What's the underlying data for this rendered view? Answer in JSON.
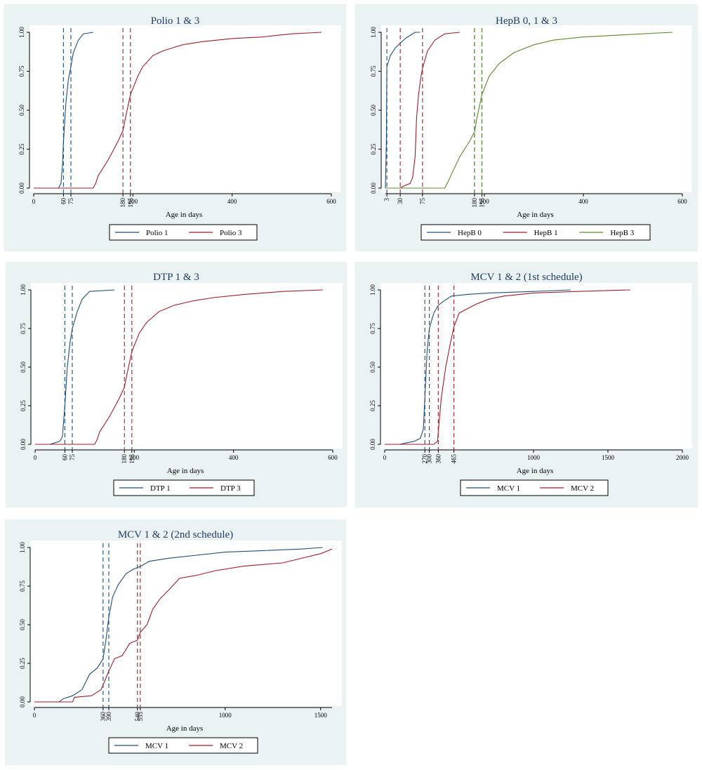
{
  "chart_data": [
    {
      "type": "line",
      "title": "Polio 1 & 3",
      "xlabel": "Age in days",
      "ylabel": "",
      "xlim": [
        0,
        600
      ],
      "ylim": [
        0,
        1
      ],
      "xticks": [
        "0",
        "200",
        "400",
        "600"
      ],
      "yticks": [
        "0.00",
        "0.25",
        "0.50",
        "0.75",
        "1.00"
      ],
      "vlines": [
        {
          "x": 60,
          "label": "60",
          "color": "#2c5d8f"
        },
        {
          "x": 75,
          "label": "75",
          "color": "#2c5d8f"
        },
        {
          "x": 180,
          "label": "180",
          "color": "#a5323a"
        },
        {
          "x": 195,
          "label": "195",
          "color": "#a5323a"
        }
      ],
      "legend": "bottom",
      "series": [
        {
          "name": "Polio 1",
          "color": "#1f4e79",
          "points": [
            [
              0,
              0
            ],
            [
              50,
              0
            ],
            [
              55,
              0.03
            ],
            [
              58,
              0.15
            ],
            [
              60,
              0.3
            ],
            [
              65,
              0.55
            ],
            [
              70,
              0.7
            ],
            [
              75,
              0.78
            ],
            [
              80,
              0.87
            ],
            [
              90,
              0.95
            ],
            [
              100,
              0.99
            ],
            [
              120,
              1.0
            ]
          ]
        },
        {
          "name": "Polio 3",
          "color": "#a01e2a",
          "points": [
            [
              0,
              0
            ],
            [
              120,
              0
            ],
            [
              125,
              0.03
            ],
            [
              130,
              0.08
            ],
            [
              150,
              0.18
            ],
            [
              170,
              0.3
            ],
            [
              180,
              0.37
            ],
            [
              185,
              0.45
            ],
            [
              195,
              0.6
            ],
            [
              210,
              0.72
            ],
            [
              220,
              0.78
            ],
            [
              240,
              0.85
            ],
            [
              260,
              0.88
            ],
            [
              300,
              0.92
            ],
            [
              340,
              0.94
            ],
            [
              400,
              0.96
            ],
            [
              460,
              0.97
            ],
            [
              520,
              0.99
            ],
            [
              580,
              1.0
            ]
          ]
        }
      ]
    },
    {
      "type": "line",
      "title": "HepB 0, 1 & 3",
      "xlabel": "Age in days",
      "ylabel": "",
      "xlim": [
        0,
        600
      ],
      "ylim": [
        0,
        1
      ],
      "xticks": [
        "200",
        "400",
        "600"
      ],
      "yticks": [
        "0.00",
        "0.25",
        "0.50",
        "0.75",
        "1.00"
      ],
      "vlines": [
        {
          "x": 3,
          "label": "3",
          "color": "#2c5d8f"
        },
        {
          "x": 30,
          "label": "30",
          "color": "#a5323a"
        },
        {
          "x": 75,
          "label": "75",
          "color": "#a5323a"
        },
        {
          "x": 180,
          "label": "180",
          "color": "#4a7a2a"
        },
        {
          "x": 195,
          "label": "195",
          "color": "#4a7a2a"
        }
      ],
      "legend": "bottom",
      "series": [
        {
          "name": "HepB 0",
          "color": "#1f4e79",
          "points": [
            [
              0,
              0
            ],
            [
              2,
              0.3
            ],
            [
              3,
              0.78
            ],
            [
              10,
              0.85
            ],
            [
              20,
              0.9
            ],
            [
              30,
              0.93
            ],
            [
              40,
              0.96
            ],
            [
              50,
              0.98
            ],
            [
              60,
              1.0
            ],
            [
              70,
              1.0
            ]
          ]
        },
        {
          "name": "HepB 1",
          "color": "#a01e2a",
          "points": [
            [
              0,
              0
            ],
            [
              30,
              0
            ],
            [
              35,
              0.01
            ],
            [
              50,
              0.03
            ],
            [
              55,
              0.07
            ],
            [
              60,
              0.2
            ],
            [
              63,
              0.45
            ],
            [
              67,
              0.6
            ],
            [
              72,
              0.72
            ],
            [
              75,
              0.77
            ],
            [
              85,
              0.88
            ],
            [
              100,
              0.95
            ],
            [
              120,
              0.99
            ],
            [
              150,
              1.0
            ]
          ]
        },
        {
          "name": "HepB 3",
          "color": "#5a8a2a",
          "points": [
            [
              0,
              0
            ],
            [
              120,
              0
            ],
            [
              125,
              0.03
            ],
            [
              135,
              0.1
            ],
            [
              150,
              0.2
            ],
            [
              170,
              0.3
            ],
            [
              180,
              0.36
            ],
            [
              185,
              0.45
            ],
            [
              195,
              0.6
            ],
            [
              210,
              0.72
            ],
            [
              230,
              0.8
            ],
            [
              260,
              0.87
            ],
            [
              300,
              0.92
            ],
            [
              340,
              0.95
            ],
            [
              400,
              0.97
            ],
            [
              460,
              0.98
            ],
            [
              520,
              0.99
            ],
            [
              580,
              1.0
            ]
          ]
        }
      ]
    },
    {
      "type": "line",
      "title": "DTP 1 & 3",
      "xlabel": "Age in days",
      "ylabel": "",
      "xlim": [
        0,
        600
      ],
      "ylim": [
        0,
        1
      ],
      "xticks": [
        "0",
        "200",
        "400",
        "600"
      ],
      "yticks": [
        "0.00",
        "0.25",
        "0.50",
        "0.75",
        "1.00"
      ],
      "vlines": [
        {
          "x": 60,
          "label": "60",
          "color": "#2c5d8f"
        },
        {
          "x": 75,
          "label": "75",
          "color": "#2c5d8f"
        },
        {
          "x": 180,
          "label": "180",
          "color": "#a5323a"
        },
        {
          "x": 195,
          "label": "195",
          "color": "#a5323a"
        }
      ],
      "legend": "bottom",
      "series": [
        {
          "name": "DTP 1",
          "color": "#1f4e79",
          "points": [
            [
              0,
              0
            ],
            [
              30,
              0
            ],
            [
              40,
              0.01
            ],
            [
              50,
              0.02
            ],
            [
              55,
              0.05
            ],
            [
              60,
              0.25
            ],
            [
              65,
              0.5
            ],
            [
              70,
              0.65
            ],
            [
              75,
              0.75
            ],
            [
              85,
              0.86
            ],
            [
              95,
              0.94
            ],
            [
              110,
              0.99
            ],
            [
              160,
              1.0
            ]
          ]
        },
        {
          "name": "DTP 3",
          "color": "#a01e2a",
          "points": [
            [
              0,
              0
            ],
            [
              120,
              0
            ],
            [
              125,
              0.03
            ],
            [
              130,
              0.08
            ],
            [
              150,
              0.18
            ],
            [
              170,
              0.3
            ],
            [
              180,
              0.37
            ],
            [
              185,
              0.45
            ],
            [
              195,
              0.6
            ],
            [
              210,
              0.72
            ],
            [
              225,
              0.79
            ],
            [
              250,
              0.86
            ],
            [
              280,
              0.9
            ],
            [
              320,
              0.93
            ],
            [
              360,
              0.95
            ],
            [
              420,
              0.97
            ],
            [
              500,
              0.99
            ],
            [
              580,
              1.0
            ]
          ]
        }
      ]
    },
    {
      "type": "line",
      "title": "MCV 1 & 2 (1st schedule)",
      "xlabel": "Age in days",
      "ylabel": "",
      "xlim": [
        0,
        2000
      ],
      "ylim": [
        0,
        1
      ],
      "xticks": [
        "0",
        "1000",
        "1500",
        "2000"
      ],
      "yticks": [
        "0.00",
        "0.25",
        "0.50",
        "0.75",
        "1.00"
      ],
      "vlines": [
        {
          "x": 270,
          "label": "270",
          "color": "#2c5d8f"
        },
        {
          "x": 300,
          "label": "300",
          "color": "#2c5d8f"
        },
        {
          "x": 360,
          "label": "360",
          "color": "#a5323a"
        },
        {
          "x": 465,
          "label": "465",
          "color": "#a5323a"
        }
      ],
      "legend": "bottom",
      "series": [
        {
          "name": "MCV 1",
          "color": "#1f4e79",
          "points": [
            [
              0,
              0
            ],
            [
              100,
              0
            ],
            [
              150,
              0.01
            ],
            [
              200,
              0.02
            ],
            [
              240,
              0.04
            ],
            [
              260,
              0.1
            ],
            [
              270,
              0.3
            ],
            [
              285,
              0.6
            ],
            [
              300,
              0.75
            ],
            [
              330,
              0.85
            ],
            [
              360,
              0.9
            ],
            [
              400,
              0.93
            ],
            [
              450,
              0.96
            ],
            [
              550,
              0.97
            ],
            [
              700,
              0.98
            ],
            [
              1000,
              0.99
            ],
            [
              1250,
              1.0
            ]
          ]
        },
        {
          "name": "MCV 2",
          "color": "#a01e2a",
          "points": [
            [
              0,
              0
            ],
            [
              330,
              0
            ],
            [
              355,
              0.02
            ],
            [
              360,
              0.08
            ],
            [
              380,
              0.3
            ],
            [
              410,
              0.5
            ],
            [
              440,
              0.65
            ],
            [
              465,
              0.76
            ],
            [
              500,
              0.85
            ],
            [
              560,
              0.88
            ],
            [
              620,
              0.91
            ],
            [
              700,
              0.94
            ],
            [
              800,
              0.96
            ],
            [
              1000,
              0.98
            ],
            [
              1300,
              0.99
            ],
            [
              1650,
              1.0
            ]
          ]
        }
      ]
    },
    {
      "type": "line",
      "title": "MCV 1 & 2 (2nd schedule)",
      "xlabel": "Age in days",
      "ylabel": "",
      "xlim": [
        0,
        1560
      ],
      "ylim": [
        0,
        1
      ],
      "xticks": [
        "0",
        "1000",
        "1500"
      ],
      "yticks": [
        "0.00",
        "0.25",
        "0.50",
        "0.75",
        "1.00"
      ],
      "vlines": [
        {
          "x": 360,
          "label": "360",
          "color": "#2c5d8f"
        },
        {
          "x": 390,
          "label": "390",
          "color": "#2c5d8f"
        },
        {
          "x": 540,
          "label": "540",
          "color": "#a5323a"
        },
        {
          "x": 555,
          "label": "555",
          "color": "#a5323a"
        }
      ],
      "legend": "bottom",
      "series": [
        {
          "name": "MCV 1",
          "color": "#1f4e79",
          "points": [
            [
              0,
              0
            ],
            [
              130,
              0
            ],
            [
              150,
              0.02
            ],
            [
              200,
              0.04
            ],
            [
              250,
              0.08
            ],
            [
              290,
              0.18
            ],
            [
              330,
              0.22
            ],
            [
              360,
              0.28
            ],
            [
              375,
              0.4
            ],
            [
              390,
              0.55
            ],
            [
              410,
              0.68
            ],
            [
              440,
              0.76
            ],
            [
              480,
              0.83
            ],
            [
              520,
              0.86
            ],
            [
              560,
              0.88
            ],
            [
              600,
              0.91
            ],
            [
              700,
              0.93
            ],
            [
              850,
              0.95
            ],
            [
              1000,
              0.97
            ],
            [
              1200,
              0.98
            ],
            [
              1400,
              0.99
            ],
            [
              1510,
              1.0
            ]
          ]
        },
        {
          "name": "MCV 2",
          "color": "#a01e2a",
          "points": [
            [
              0,
              0
            ],
            [
              200,
              0
            ],
            [
              210,
              0.03
            ],
            [
              300,
              0.04
            ],
            [
              350,
              0.08
            ],
            [
              390,
              0.2
            ],
            [
              420,
              0.28
            ],
            [
              460,
              0.3
            ],
            [
              500,
              0.38
            ],
            [
              540,
              0.4
            ],
            [
              555,
              0.45
            ],
            [
              590,
              0.5
            ],
            [
              620,
              0.6
            ],
            [
              660,
              0.67
            ],
            [
              700,
              0.72
            ],
            [
              760,
              0.8
            ],
            [
              850,
              0.82
            ],
            [
              950,
              0.85
            ],
            [
              1100,
              0.88
            ],
            [
              1300,
              0.9
            ],
            [
              1400,
              0.93
            ],
            [
              1500,
              0.96
            ],
            [
              1560,
              0.99
            ]
          ]
        }
      ]
    }
  ]
}
